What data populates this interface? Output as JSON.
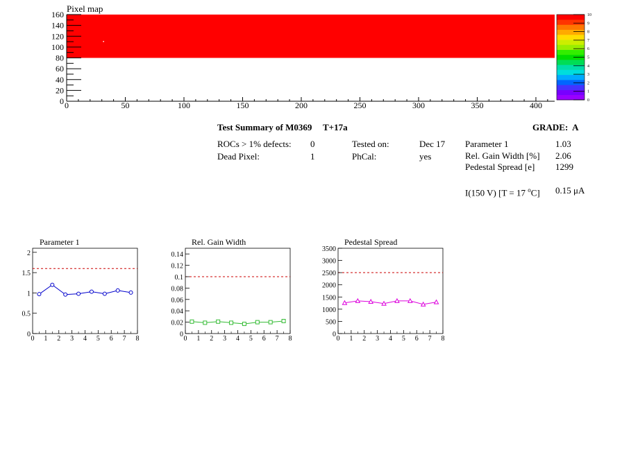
{
  "pixel_map": {
    "title": "Pixel map",
    "colors": {
      "fill": "#ff0000"
    }
  },
  "summary": {
    "title": "Test Summary of M0369",
    "test_condition": "T+17a",
    "grade_label": "GRADE:",
    "grade_value": "A",
    "rocs_label": "ROCs > 1% defects:",
    "rocs_value": "0",
    "dead_label": "Dead Pixel:",
    "dead_value": "1",
    "tested_label": "Tested on:",
    "tested_value": "Dec 17",
    "phcal_label": "PhCal:",
    "phcal_value": "yes",
    "param1_label": "Parameter 1",
    "param1_value": "1.03",
    "gain_label": "Rel. Gain Width [%]",
    "gain_value": "2.06",
    "ped_label": "Pedestal Spread [e]",
    "ped_value": "1299",
    "current_label_prefix": "I(150 V) [T = 17 ",
    "current_label_degree": "o",
    "current_label_suffix": "C]",
    "current_value": "0.15 μA"
  },
  "chart_data": [
    {
      "id": "pixel-map",
      "type": "heatmap",
      "title": "Pixel map",
      "x_ticks": [
        "0",
        "50",
        "100",
        "150",
        "200",
        "250",
        "300",
        "350",
        "400"
      ],
      "y_ticks": [
        "0",
        "20",
        "40",
        "60",
        "80",
        "100",
        "120",
        "140",
        "160"
      ],
      "xlim": [
        0,
        416
      ],
      "ylim": [
        0,
        160
      ],
      "filled_region": {
        "x": [
          0,
          416
        ],
        "y": [
          80,
          160
        ]
      },
      "dead_pixel": {
        "x": 31,
        "y": 110
      },
      "colorbar": {
        "min": 0,
        "max": 10,
        "ticks": [
          "0",
          "1",
          "2",
          "3",
          "4",
          "5",
          "6",
          "7",
          "8",
          "9",
          "10"
        ],
        "colors": [
          "#9900ff",
          "#7700ff",
          "#4433ff",
          "#0066ff",
          "#00aaff",
          "#00dddd",
          "#00ddaa",
          "#00dd55",
          "#00dd00",
          "#33ee00",
          "#99ee00",
          "#ccee00",
          "#ffdd00",
          "#ffaa00",
          "#ff7700",
          "#ff3300",
          "#ff0000"
        ]
      }
    },
    {
      "id": "parameter-1",
      "type": "line",
      "title": "Parameter 1",
      "x": [
        0.5,
        1.5,
        2.5,
        3.5,
        4.5,
        5.5,
        6.5,
        7.5
      ],
      "values": [
        0.97,
        1.2,
        0.96,
        0.98,
        1.03,
        0.98,
        1.06,
        1.01
      ],
      "xlim": [
        0,
        8
      ],
      "ylim": [
        0,
        2.1
      ],
      "threshold": 1.6,
      "x_ticks": [
        "0",
        "1",
        "2",
        "3",
        "4",
        "5",
        "6",
        "7",
        "8"
      ],
      "y_ticks": [
        "0",
        "0.5",
        "1",
        "1.5",
        "2"
      ],
      "y_tick_values": [
        0,
        0.5,
        1,
        1.5,
        2
      ],
      "color": "#0000cc",
      "marker": "circle"
    },
    {
      "id": "rel-gain-width",
      "type": "line",
      "title": "Rel. Gain Width",
      "x": [
        0.5,
        1.5,
        2.5,
        3.5,
        4.5,
        5.5,
        6.5,
        7.5
      ],
      "values": [
        0.021,
        0.019,
        0.021,
        0.019,
        0.017,
        0.02,
        0.02,
        0.022
      ],
      "xlim": [
        0,
        8
      ],
      "ylim": [
        0,
        0.15
      ],
      "threshold": 0.1,
      "x_ticks": [
        "0",
        "1",
        "2",
        "3",
        "4",
        "5",
        "6",
        "7",
        "8"
      ],
      "y_ticks": [
        "0",
        "0.02",
        "0.04",
        "0.06",
        "0.08",
        "0.1",
        "0.12",
        "0.14"
      ],
      "y_tick_values": [
        0,
        0.02,
        0.04,
        0.06,
        0.08,
        0.1,
        0.12,
        0.14
      ],
      "color": "#33bb33",
      "marker": "square"
    },
    {
      "id": "pedestal-spread",
      "type": "line",
      "title": "Pedestal Spread",
      "x": [
        0.5,
        1.5,
        2.5,
        3.5,
        4.5,
        5.5,
        6.5,
        7.5
      ],
      "values": [
        1260,
        1340,
        1310,
        1230,
        1340,
        1340,
        1200,
        1290
      ],
      "xlim": [
        0,
        8
      ],
      "ylim": [
        0,
        3500
      ],
      "threshold": 2500,
      "x_ticks": [
        "0",
        "1",
        "2",
        "3",
        "4",
        "5",
        "6",
        "7",
        "8"
      ],
      "y_ticks": [
        "0",
        "500",
        "1000",
        "1500",
        "2000",
        "2500",
        "3000",
        "3500"
      ],
      "y_tick_values": [
        0,
        500,
        1000,
        1500,
        2000,
        2500,
        3000,
        3500
      ],
      "color": "#dd00dd",
      "marker": "triangle"
    }
  ]
}
